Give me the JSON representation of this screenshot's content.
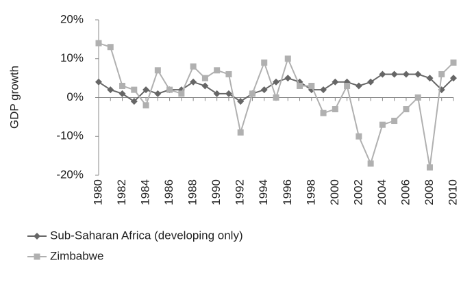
{
  "chart_data": {
    "type": "line",
    "y_label": "GDP growth",
    "x": [
      1980,
      1981,
      1982,
      1983,
      1984,
      1985,
      1986,
      1987,
      1988,
      1989,
      1990,
      1991,
      1992,
      1993,
      1994,
      1995,
      1996,
      1997,
      1998,
      1999,
      2000,
      2001,
      2002,
      2003,
      2004,
      2005,
      2006,
      2007,
      2008,
      2009,
      2010
    ],
    "xlim": [
      1980,
      2010
    ],
    "xticks": [
      1980,
      1982,
      1984,
      1986,
      1988,
      1990,
      1992,
      1994,
      1996,
      1998,
      2000,
      2002,
      2004,
      2006,
      2008,
      2010
    ],
    "ylim": [
      -20,
      20
    ],
    "yticks": [
      {
        "value": -20,
        "label": "-20%"
      },
      {
        "value": -10,
        "label": "-10%"
      },
      {
        "value": 0,
        "label": "0%"
      },
      {
        "value": 10,
        "label": "10%"
      },
      {
        "value": 20,
        "label": "20%"
      }
    ],
    "grid": false,
    "series": [
      {
        "name": "Sub-Saharan Africa (developing only)",
        "color": "#666666",
        "marker": "diamond",
        "values": [
          4,
          2,
          1,
          -1,
          2,
          1,
          2,
          2,
          4,
          3,
          1,
          1,
          -1,
          1,
          2,
          4,
          5,
          4,
          2,
          2,
          4,
          4,
          3,
          4,
          6,
          6,
          6,
          6,
          5,
          2,
          5
        ]
      },
      {
        "name": "Zimbabwe",
        "color": "#b0b0b0",
        "marker": "square",
        "values": [
          14,
          13,
          3,
          2,
          -2,
          7,
          2,
          1,
          8,
          5,
          7,
          6,
          -9,
          1,
          9,
          0,
          10,
          3,
          3,
          -4,
          -3,
          3,
          -10,
          -17,
          -7,
          -6,
          -3,
          0,
          -18,
          6,
          9
        ]
      }
    ]
  }
}
